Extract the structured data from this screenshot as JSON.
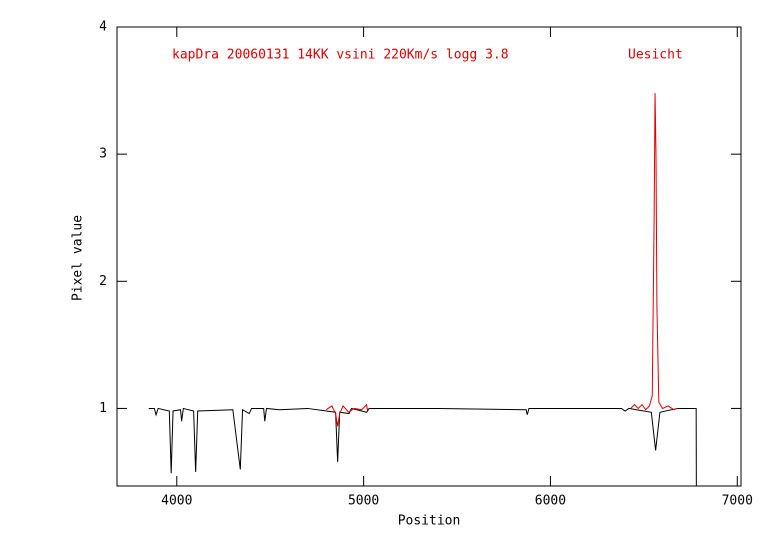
{
  "chart_data": {
    "type": "line",
    "title": "kapDra 20060131 14KK vsini 220Km/s logg 3.8",
    "subtitle": "Uesicht",
    "x_label": "Position",
    "y_label": "Pixel value",
    "xlim": [
      3680,
      7020
    ],
    "ylim": [
      0.39,
      4
    ],
    "xticks": [
      4000,
      5000,
      6000,
      7000
    ],
    "yticks": [
      1,
      2,
      3,
      4
    ],
    "title_color": "#e00000",
    "series": [
      {
        "color": "#000000",
        "x": [
          3850,
          3880,
          3889,
          3900,
          3960,
          3970,
          3980,
          4020,
          4026,
          4035,
          4090,
          4101,
          4112,
          4300,
          4340,
          4352,
          4388,
          4400,
          4465,
          4471,
          4480,
          4550,
          4700,
          4850,
          4861,
          4872,
          4922,
          4935,
          5016,
          5030,
          5400,
          5870,
          5876,
          5885,
          6380,
          6400,
          6420,
          6540,
          6563,
          6586,
          6680,
          6780,
          6781
        ],
        "values": [
          1.0,
          1.0,
          0.95,
          1.0,
          0.98,
          0.49,
          0.98,
          0.99,
          0.9,
          1.0,
          0.98,
          0.5,
          0.98,
          0.99,
          0.52,
          0.99,
          0.96,
          1.0,
          1.0,
          0.9,
          1.0,
          0.99,
          1.0,
          0.97,
          0.58,
          0.97,
          0.96,
          1.0,
          0.97,
          1.0,
          1.0,
          0.99,
          0.95,
          1.0,
          1.0,
          0.98,
          1.0,
          0.97,
          0.67,
          0.97,
          1.0,
          1.0,
          0.39
        ]
      },
      {
        "color": "#e00000",
        "x": [
          4800,
          4830,
          4850,
          4861,
          4872,
          4890,
          4920,
          4950,
          4990,
          5016,
          5020,
          5030,
          5200,
          6430,
          6450,
          6470,
          6490,
          6510,
          6530,
          6545,
          6555,
          6560,
          6565,
          6570,
          6580,
          6600,
          6630,
          6660,
          6680
        ],
        "values": [
          0.99,
          1.02,
          0.96,
          0.86,
          0.96,
          1.02,
          0.97,
          1.0,
          0.99,
          1.03,
          0.99,
          1.0,
          null,
          1.0,
          1.03,
          1.0,
          1.03,
          0.99,
          1.02,
          1.1,
          2.5,
          3.48,
          3.0,
          1.8,
          1.05,
          1.0,
          1.02,
          0.99,
          1.0
        ]
      }
    ]
  }
}
